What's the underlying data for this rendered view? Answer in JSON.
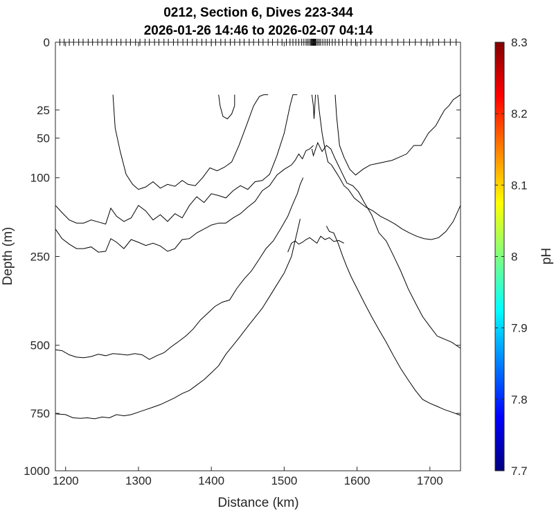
{
  "chart_data": {
    "type": "contour",
    "title": "0212, Section 6, Dives 223-344",
    "subtitle": "2026-01-26 14:46 to 2026-02-07 04:14",
    "xlabel": "Distance (km)",
    "ylabel": "Depth (m)",
    "xlim": [
      1186,
      1742
    ],
    "ylim": [
      0,
      1000
    ],
    "y_scale": "sqrt",
    "xticks": [
      1200,
      1300,
      1400,
      1500,
      1600,
      1700
    ],
    "yticks": [
      0,
      25,
      50,
      100,
      250,
      500,
      750,
      1000
    ],
    "colorbar": {
      "label": "pH",
      "range": [
        7.7,
        8.3
      ],
      "ticks": [
        "7.7",
        "7.8",
        "7.9",
        "8",
        "8.1",
        "8.2",
        "8.3"
      ],
      "colormap": [
        "#00007f",
        "#0000ff",
        "#007fff",
        "#00ffff",
        "#7fff7f",
        "#ffff00",
        "#ff7f00",
        "#ff0000",
        "#7f0000"
      ]
    },
    "dive_marker_x": [
      1192,
      1198,
      1205,
      1211,
      1218,
      1224,
      1231,
      1237,
      1244,
      1250,
      1257,
      1263,
      1270,
      1276,
      1283,
      1289,
      1296,
      1302,
      1309,
      1315,
      1322,
      1328,
      1335,
      1341,
      1348,
      1354,
      1361,
      1367,
      1374,
      1380,
      1387,
      1393,
      1400,
      1406,
      1413,
      1419,
      1426,
      1432,
      1439,
      1445,
      1452,
      1458,
      1465,
      1471,
      1478,
      1484,
      1491,
      1497,
      1503,
      1508,
      1512,
      1516,
      1520,
      1524,
      1527,
      1530,
      1532,
      1534,
      1536,
      1537,
      1538,
      1539,
      1540,
      1541,
      1542,
      1543,
      1544,
      1546,
      1548,
      1550,
      1553,
      1556,
      1559,
      1562,
      1566,
      1570,
      1575,
      1580,
      1586,
      1592,
      1598,
      1605,
      1612,
      1619,
      1626,
      1633,
      1640,
      1648,
      1656,
      1664,
      1672,
      1680,
      1688,
      1696,
      1704,
      1712,
      1720,
      1728,
      1736
    ],
    "contours": [
      {
        "x": [
          1265,
          1268,
          1275,
          1283,
          1292,
          1300,
          1310,
          1320,
          1330,
          1340,
          1350,
          1360,
          1368,
          1378,
          1388,
          1398,
          1408,
          1418,
          1428,
          1438,
          1448,
          1458,
          1466,
          1472,
          1476,
          1478,
          1478,
          1478,
          1478,
          1478,
          1478
        ],
        "y": [
          15,
          40,
          65,
          95,
          110,
          118,
          114,
          106,
          116,
          110,
          113,
          104,
          110,
          112,
          100,
          86,
          90,
          85,
          78,
          58,
          38,
          22,
          16,
          15,
          15,
          15,
          15,
          15,
          15,
          15,
          15
        ]
      },
      {
        "x": [
          1186,
          1195,
          1205,
          1215,
          1225,
          1235,
          1245,
          1255,
          1262,
          1270,
          1280,
          1290,
          1300,
          1310,
          1320,
          1330,
          1340,
          1350,
          1360,
          1370,
          1380,
          1390,
          1400,
          1410,
          1420,
          1430,
          1440,
          1450,
          1460,
          1470,
          1480,
          1490,
          1500,
          1508,
          1512,
          1516,
          1518
        ],
        "y": [
          145,
          158,
          172,
          178,
          178,
          172,
          176,
          180,
          150,
          165,
          175,
          168,
          145,
          155,
          172,
          162,
          175,
          160,
          168,
          145,
          130,
          140,
          125,
          128,
          132,
          120,
          112,
          118,
          106,
          104,
          95,
          70,
          45,
          22,
          15,
          15,
          15
        ]
      },
      {
        "x": [
          1186,
          1195,
          1205,
          1215,
          1225,
          1235,
          1245,
          1255,
          1262,
          1270,
          1280,
          1290,
          1300,
          1310,
          1320,
          1330,
          1340,
          1350,
          1360,
          1370,
          1380,
          1390,
          1400,
          1410,
          1420,
          1430,
          1440,
          1450,
          1460,
          1470,
          1480,
          1490,
          1500,
          1510,
          1515,
          1520,
          1525,
          1530,
          1535,
          1540
        ],
        "y": [
          190,
          210,
          222,
          232,
          232,
          228,
          240,
          238,
          210,
          218,
          232,
          212,
          218,
          225,
          220,
          226,
          238,
          232,
          212,
          210,
          198,
          190,
          182,
          178,
          178,
          168,
          160,
          148,
          138,
          120,
          112,
          96,
          88,
          82,
          76,
          68,
          74,
          64,
          62,
          58
        ]
      },
      {
        "x": [
          1186,
          1195,
          1205,
          1215,
          1225,
          1235,
          1245,
          1255,
          1265,
          1275,
          1285,
          1295,
          1305,
          1315,
          1325,
          1335,
          1345,
          1355,
          1365,
          1375,
          1385,
          1395,
          1405,
          1415,
          1425,
          1435,
          1445,
          1455,
          1465,
          1475,
          1485,
          1495,
          1505,
          1512,
          1518,
          1522,
          1526
        ],
        "y": [
          515,
          518,
          532,
          540,
          542,
          538,
          530,
          535,
          528,
          530,
          533,
          528,
          532,
          548,
          535,
          525,
          505,
          488,
          470,
          448,
          420,
          400,
          380,
          368,
          362,
          330,
          305,
          285,
          258,
          232,
          215,
          190,
          165,
          142,
          125,
          110,
          100
        ]
      },
      {
        "x": [
          1186,
          1200,
          1210,
          1220,
          1230,
          1240,
          1250,
          1260,
          1270,
          1280,
          1290,
          1300,
          1310,
          1320,
          1330,
          1340,
          1350,
          1360,
          1370,
          1380,
          1390,
          1400,
          1410,
          1420,
          1430,
          1440,
          1450,
          1460,
          1470,
          1480,
          1490,
          1500,
          1510,
          1518,
          1522
        ],
        "y": [
          752,
          755,
          768,
          770,
          768,
          772,
          765,
          768,
          755,
          760,
          755,
          745,
          735,
          725,
          715,
          702,
          688,
          672,
          660,
          640,
          620,
          595,
          570,
          530,
          500,
          470,
          440,
          412,
          385,
          352,
          320,
          290,
          250,
          195,
          170
        ]
      },
      {
        "x": [
          1538,
          1540,
          1546,
          1552,
          1558,
          1564,
          1570,
          1578,
          1586,
          1594,
          1602,
          1610,
          1620,
          1630,
          1640,
          1650,
          1660,
          1670,
          1680,
          1690,
          1700,
          1710,
          1720,
          1730,
          1742
        ],
        "y": [
          62,
          70,
          55,
          65,
          58,
          62,
          74,
          90,
          108,
          112,
          122,
          140,
          162,
          198,
          215,
          248,
          285,
          330,
          370,
          410,
          440,
          470,
          480,
          490,
          510
        ]
      },
      {
        "x": [
          1558,
          1562,
          1568,
          1574,
          1580,
          1586,
          1592,
          1600,
          1610,
          1620,
          1630,
          1640,
          1650,
          1660,
          1670,
          1680,
          1690,
          1700,
          1710,
          1720,
          1730,
          1742
        ],
        "y": [
          184,
          195,
          198,
          220,
          248,
          275,
          300,
          330,
          370,
          410,
          450,
          490,
          535,
          580,
          620,
          660,
          695,
          710,
          722,
          735,
          745,
          758
        ]
      },
      {
        "x": [
          1546,
          1548,
          1552,
          1556,
          1560,
          1565,
          1570,
          1576,
          1582,
          1588,
          1596,
          1604,
          1612,
          1622,
          1632,
          1642,
          1652,
          1662,
          1672,
          1682,
          1692,
          1702,
          1712,
          1722,
          1732,
          1742
        ],
        "y": [
          15,
          25,
          45,
          62,
          78,
          82,
          90,
          100,
          112,
          118,
          132,
          140,
          148,
          155,
          165,
          172,
          180,
          190,
          198,
          205,
          210,
          212,
          208,
          195,
          175,
          145
        ]
      },
      {
        "x": [
          1570,
          1572,
          1576,
          1582,
          1590,
          1598,
          1608,
          1618,
          1628,
          1638,
          1648,
          1658,
          1668,
          1678,
          1688,
          1698,
          1708,
          1715,
          1720,
          1726,
          1732,
          1742
        ],
        "y": [
          15,
          30,
          58,
          72,
          88,
          96,
          88,
          82,
          80,
          78,
          76,
          72,
          68,
          58,
          58,
          45,
          38,
          30,
          25,
          22,
          18,
          15
        ]
      },
      {
        "x": [
          1410,
          1412,
          1416,
          1422,
          1428,
          1432,
          1432
        ],
        "y": [
          15,
          22,
          30,
          32,
          28,
          22,
          15
        ]
      },
      {
        "x": [
          1538,
          1540,
          1541,
          1543
        ],
        "y": [
          15,
          22,
          32,
          15
        ]
      },
      {
        "x": [
          1505,
          1510,
          1515,
          1520,
          1525,
          1530,
          1535,
          1540,
          1545,
          1550,
          1556,
          1562,
          1568,
          1575,
          1582
        ],
        "y": [
          240,
          220,
          215,
          222,
          218,
          212,
          208,
          214,
          220,
          205,
          212,
          208,
          216,
          214,
          220
        ]
      }
    ]
  }
}
